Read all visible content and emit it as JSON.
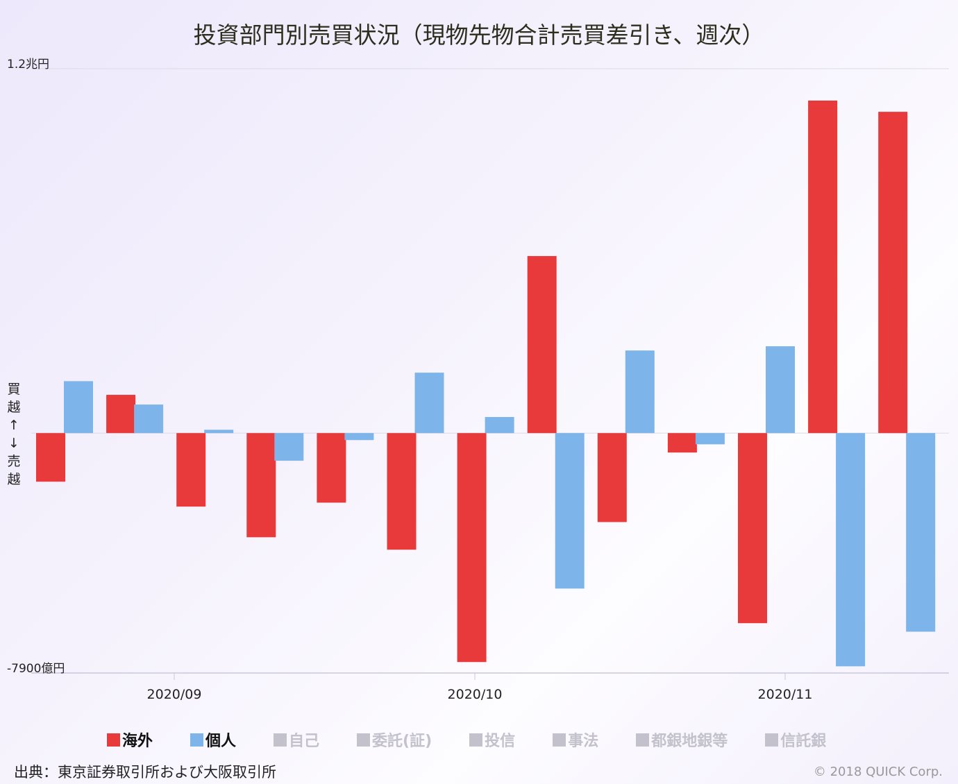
{
  "chart_data": {
    "type": "bar",
    "title": "投資部門別売買状況（現物先物合計売買差引き、週次）",
    "ylabel": "買越↑↓売越",
    "ylabel_chars": [
      "買",
      "越",
      "↑",
      "↓",
      "売",
      "越"
    ],
    "ylim": [
      -7900,
      12000
    ],
    "y_tick_labels": {
      "top": "1.2兆円",
      "bottom": "-7900億円"
    },
    "unit": "億円",
    "x_tick_labels": [
      "2020/09",
      "2020/10",
      "2020/11"
    ],
    "weeks": 13,
    "series": [
      {
        "name": "海外",
        "color": "#e8393b",
        "active": true,
        "values": [
          -1600,
          1260,
          -2420,
          -3430,
          -2290,
          -3840,
          -7540,
          5830,
          -2930,
          -640,
          -6260,
          10950,
          10580
        ]
      },
      {
        "name": "個人",
        "color": "#7db4ea",
        "active": true,
        "values": [
          1710,
          940,
          110,
          -910,
          -230,
          1990,
          530,
          -5120,
          2720,
          -370,
          2860,
          -7680,
          -6540
        ]
      }
    ],
    "legend": [
      {
        "name": "海外",
        "color": "#e8393b",
        "active": true
      },
      {
        "name": "個人",
        "color": "#7db4ea",
        "active": true
      },
      {
        "name": "自己",
        "color": "#c3c2cc",
        "active": false
      },
      {
        "name": "委託(証)",
        "color": "#c3c2cc",
        "active": false
      },
      {
        "name": "投信",
        "color": "#c3c2cc",
        "active": false
      },
      {
        "name": "事法",
        "color": "#c3c2cc",
        "active": false
      },
      {
        "name": "都銀地銀等",
        "color": "#c3c2cc",
        "active": false
      },
      {
        "name": "信託銀",
        "color": "#c3c2cc",
        "active": false
      }
    ],
    "legend_position": "bottom"
  },
  "footer": {
    "source": "出典：東京証券取引所および大阪取引所",
    "copyright": "© 2018 QUICK Corp."
  }
}
